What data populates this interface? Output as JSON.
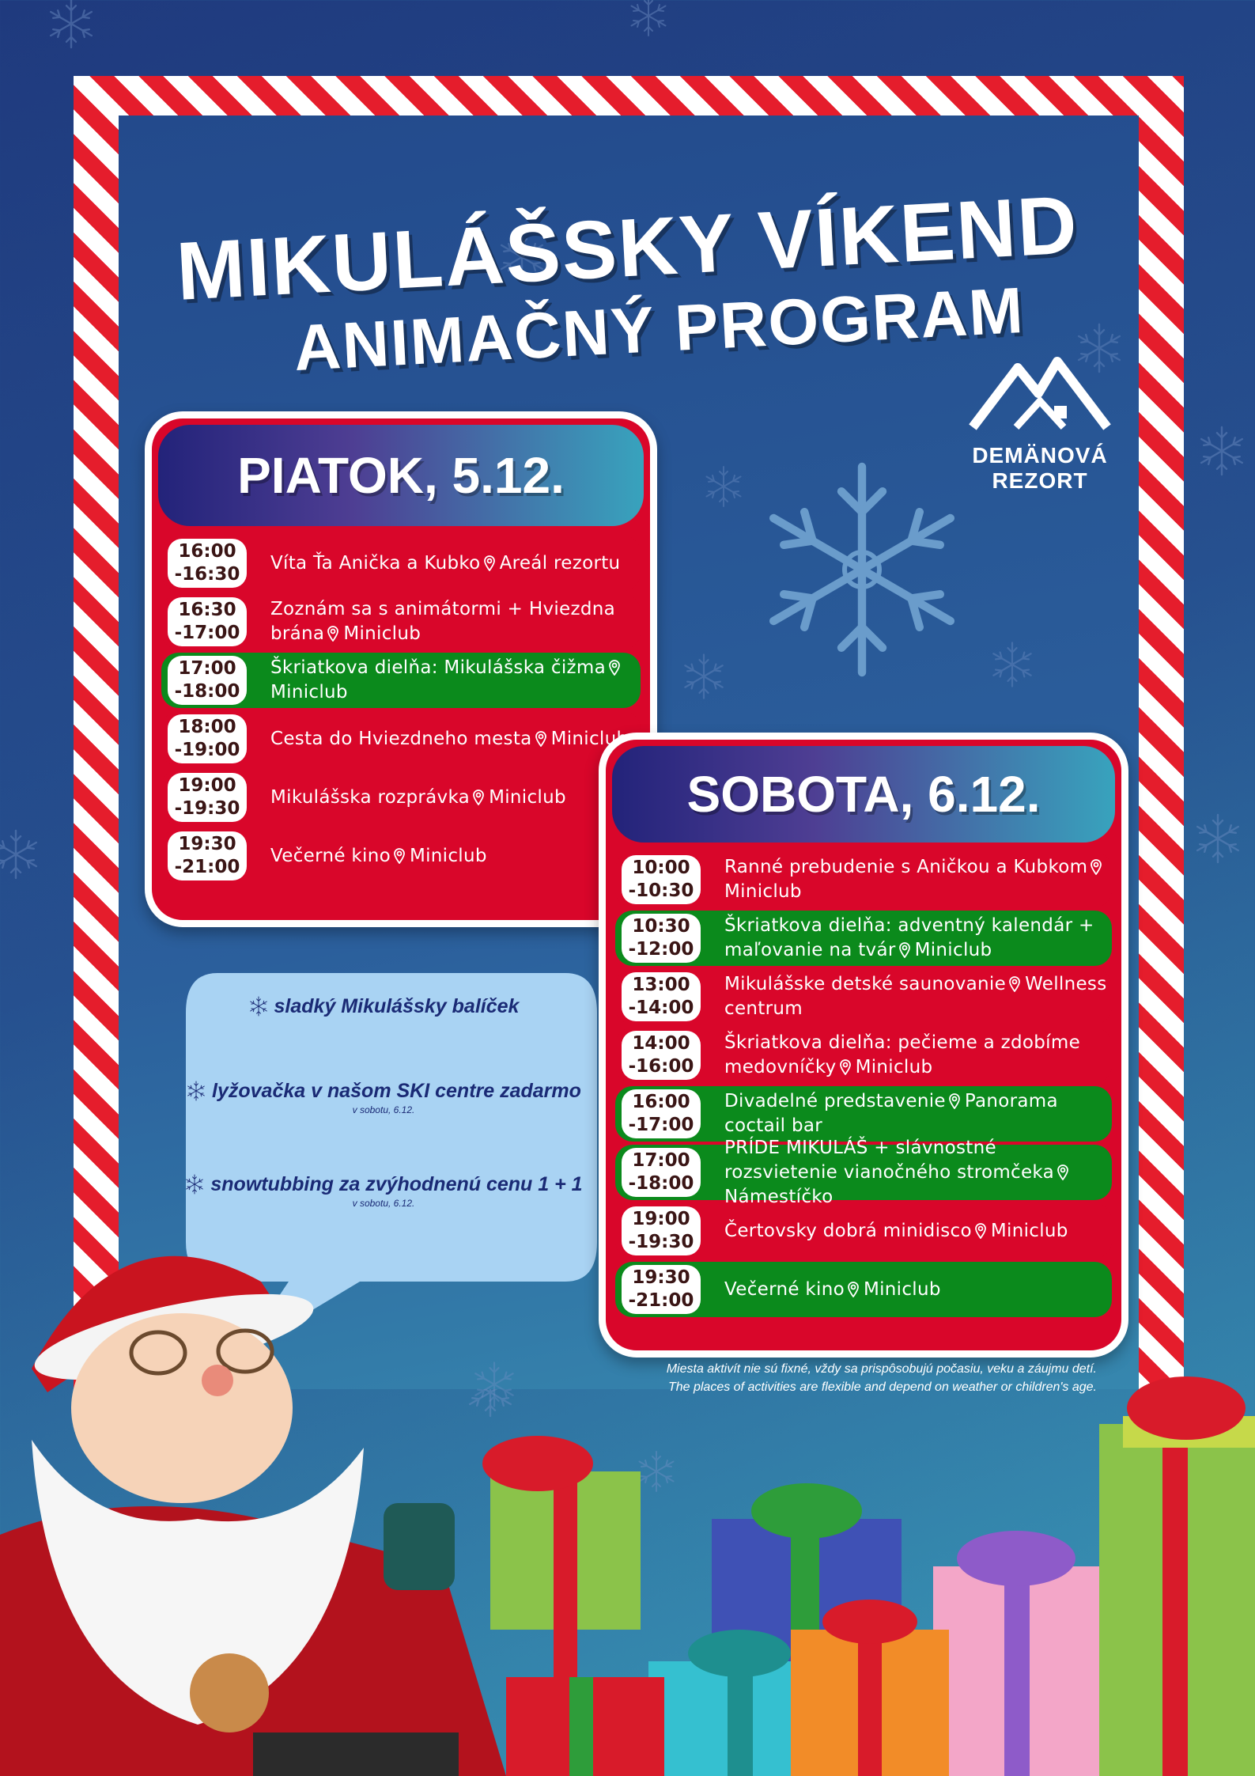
{
  "header": {
    "title": "MIKULÁŠSKY VÍKEND",
    "subtitle": "ANIMAČNÝ PROGRAM"
  },
  "logo": {
    "line1": "DEMÄNOVÁ",
    "line2": "REZORT"
  },
  "days": [
    {
      "title": "PIATOK, 5.12.",
      "events": [
        {
          "time_start": "16:00",
          "time_end": "-16:30",
          "title": "Víta Ťa Anička a Kubko",
          "place": "Areál rezortu",
          "color": "#d9062a"
        },
        {
          "time_start": "16:30",
          "time_end": "-17:00",
          "title": "Zoznám sa s animátormi + Hviezdna brána",
          "place": "Miniclub",
          "color": "#d9062a"
        },
        {
          "time_start": "17:00",
          "time_end": "-18:00",
          "title": "Škriatkova dielňa: Mikulášska čižma",
          "place": "Miniclub",
          "color": "#0b8a1c"
        },
        {
          "time_start": "18:00",
          "time_end": "-19:00",
          "title": "Cesta do Hviezdneho mesta",
          "place": "Miniclub",
          "color": "#d9062a"
        },
        {
          "time_start": "19:00",
          "time_end": "-19:30",
          "title": "Mikulášska rozprávka",
          "place": "Miniclub",
          "color": "#d9062a"
        },
        {
          "time_start": "19:30",
          "time_end": "-21:00",
          "title": "Večerné kino",
          "place": "Miniclub",
          "color": "#d9062a"
        }
      ]
    },
    {
      "title": "SOBOTA, 6.12.",
      "events": [
        {
          "time_start": "10:00",
          "time_end": "-10:30",
          "title": "Ranné prebudenie s Aničkou a Kubkom",
          "place": "Miniclub",
          "color": "#d9062a"
        },
        {
          "time_start": "10:30",
          "time_end": "-12:00",
          "title": "Škriatkova dielňa: adventný kalendár + maľovanie na tvár",
          "place": "Miniclub",
          "color": "#0b8a1c"
        },
        {
          "time_start": "13:00",
          "time_end": "-14:00",
          "title": "Mikulášske detské saunovanie",
          "place": "Wellness centrum",
          "color": "#d9062a"
        },
        {
          "time_start": "14:00",
          "time_end": "-16:00",
          "title": "Škriatkova dielňa: pečieme a zdobíme medovníčky",
          "place": "Miniclub",
          "color": "#d9062a"
        },
        {
          "time_start": "16:00",
          "time_end": "-17:00",
          "title": "Divadelné predstavenie",
          "place": "Panorama coctail bar",
          "color": "#0b8a1c"
        },
        {
          "time_start": "17:00",
          "time_end": "-18:00",
          "title": "PRÍDE MIKULÁŠ + slávnostné rozsvietenie vianočného stromčeka",
          "place": "Námestíčko",
          "color": "#0b8a1c"
        },
        {
          "time_start": "19:00",
          "time_end": "-19:30",
          "title": "Čertovsky dobrá minidisco",
          "place": "Miniclub",
          "color": "#d9062a"
        },
        {
          "time_start": "19:30",
          "time_end": "-21:00",
          "title": "Večerné kino",
          "place": "Miniclub",
          "color": "#0b8a1c"
        }
      ]
    }
  ],
  "offers": [
    {
      "text": "sladký Mikulášsky balíček"
    },
    {
      "text": "lyžovačka v našom SKI centre zadarmo",
      "note": "v sobotu, 6.12."
    },
    {
      "text": "snowtubbing za zvýhodnenú cenu 1 + 1",
      "note": "v sobotu, 6.12."
    }
  ],
  "footer": {
    "note_sk": "Miesta aktivít nie sú fixné, vždy sa prispôsobujú počasiu, veku a záujmu detí.",
    "note_en": "The places of activities are flexible and depend on weather or children's age."
  }
}
